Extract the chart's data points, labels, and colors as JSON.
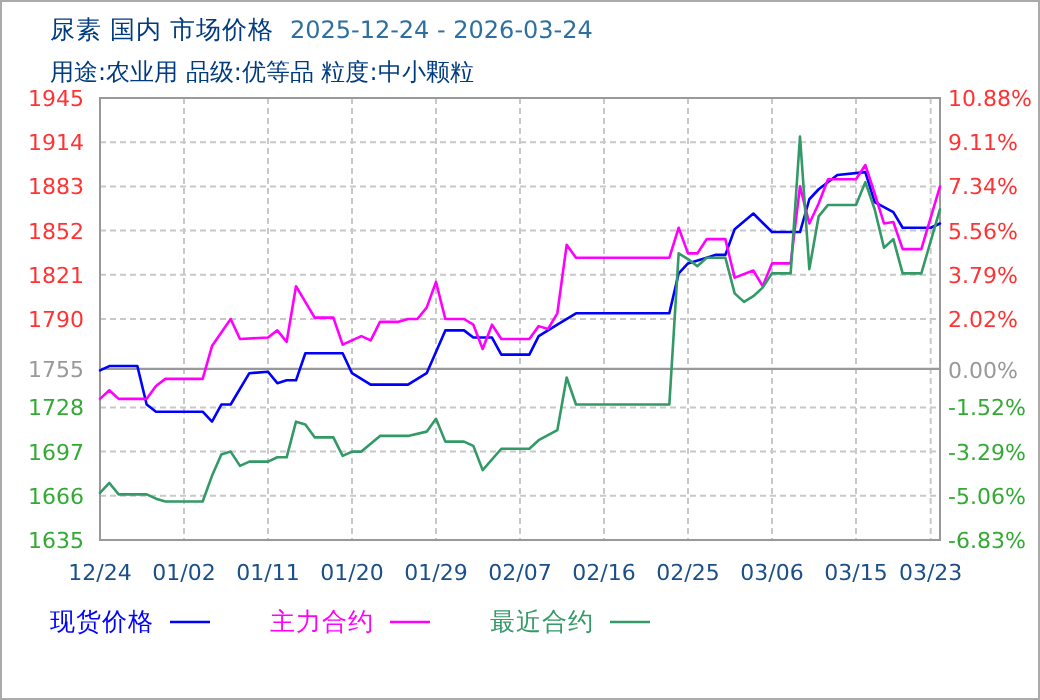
{
  "chart_data": {
    "type": "line",
    "title": "尿素 国内 市场价格",
    "subtitle": "用途:农业用 品级:优等品 粒度:中小颗粒",
    "annotations": [
      "2025-12-24 - 2026-03-24"
    ],
    "xlim": [
      "2025-12-24",
      "2026-03-24"
    ],
    "xticks": [
      {
        "value": "2025-12-24",
        "label": "12/24"
      },
      {
        "value": "2026-01-02",
        "label": "01/02"
      },
      {
        "value": "2026-01-11",
        "label": "01/11"
      },
      {
        "value": "2026-01-20",
        "label": "01/20"
      },
      {
        "value": "2026-01-29",
        "label": "01/29"
      },
      {
        "value": "2026-02-07",
        "label": "02/07"
      },
      {
        "value": "2026-02-16",
        "label": "02/16"
      },
      {
        "value": "2026-02-25",
        "label": "02/25"
      },
      {
        "value": "2026-03-06",
        "label": "03/06"
      },
      {
        "value": "2026-03-15",
        "label": "03/15"
      },
      {
        "value": "2026-03-23",
        "label": "03/23"
      }
    ],
    "ylim": [
      1635,
      1945
    ],
    "yticks": [
      1945,
      1914,
      1883,
      1852,
      1821,
      1790,
      1755,
      1728,
      1697,
      1666,
      1635
    ],
    "y2lim": [
      -6.83,
      10.88
    ],
    "y2ticks": [
      {
        "value": 10.88,
        "label": "10.88%"
      },
      {
        "value": 9.11,
        "label": "9.11%"
      },
      {
        "value": 7.34,
        "label": "7.34%"
      },
      {
        "value": 5.56,
        "label": "5.56%"
      },
      {
        "value": 3.79,
        "label": "3.79%"
      },
      {
        "value": 2.02,
        "label": "2.02%"
      },
      {
        "value": 0,
        "label": "0.00%"
      },
      {
        "value": -1.52,
        "label": "-1.52%"
      },
      {
        "value": -3.29,
        "label": "-3.29%"
      },
      {
        "value": -5.06,
        "label": "-5.06%"
      },
      {
        "value": -6.83,
        "label": "-6.83%"
      }
    ],
    "ref_lines": [
      {
        "axis": "y",
        "value": 1755,
        "color": "#999999",
        "line_style": "solid"
      }
    ],
    "grid": true,
    "legend": "bottom",
    "line_style": "solid",
    "series": [
      {
        "name": "现货价格",
        "color": "#0000ff",
        "x": [
          "2025-12-24",
          "2025-12-25",
          "2025-12-28",
          "2025-12-29",
          "2025-12-30",
          "2026-01-04",
          "2026-01-05",
          "2026-01-06",
          "2026-01-07",
          "2026-01-09",
          "2026-01-11",
          "2026-01-12",
          "2026-01-13",
          "2026-01-14",
          "2026-01-15",
          "2026-01-19",
          "2026-01-20",
          "2026-01-22",
          "2026-01-26",
          "2026-01-28",
          "2026-01-30",
          "2026-02-01",
          "2026-02-02",
          "2026-02-04",
          "2026-02-05",
          "2026-02-08",
          "2026-02-09",
          "2026-02-11",
          "2026-02-13",
          "2026-02-23",
          "2026-02-24",
          "2026-02-25",
          "2026-02-28",
          "2026-03-01",
          "2026-03-02",
          "2026-03-04",
          "2026-03-06",
          "2026-03-09",
          "2026-03-10",
          "2026-03-11",
          "2026-03-13",
          "2026-03-16",
          "2026-03-17",
          "2026-03-19",
          "2026-03-20",
          "2026-03-23",
          "2026-03-24"
        ],
        "values": [
          1754,
          1757,
          1757,
          1730,
          1725,
          1725,
          1718,
          1730,
          1730,
          1752,
          1753,
          1745,
          1747,
          1747,
          1766,
          1766,
          1752,
          1744,
          1744,
          1752,
          1782,
          1782,
          1777,
          1777,
          1765,
          1765,
          1778,
          1786,
          1794,
          1794,
          1822,
          1829,
          1835,
          1835,
          1853,
          1864,
          1851,
          1851,
          1874,
          1881,
          1891,
          1893,
          1872,
          1865,
          1854,
          1854,
          1857
        ]
      },
      {
        "name": "主力合约",
        "color": "#ff00ff",
        "x": [
          "2025-12-24",
          "2025-12-25",
          "2025-12-26",
          "2025-12-29",
          "2025-12-30",
          "2025-12-31",
          "2026-01-04",
          "2026-01-05",
          "2026-01-07",
          "2026-01-08",
          "2026-01-11",
          "2026-01-12",
          "2026-01-13",
          "2026-01-14",
          "2026-01-16",
          "2026-01-18",
          "2026-01-19",
          "2026-01-21",
          "2026-01-22",
          "2026-01-23",
          "2026-01-25",
          "2026-01-26",
          "2026-01-27",
          "2026-01-28",
          "2026-01-29",
          "2026-01-30",
          "2026-02-01",
          "2026-02-02",
          "2026-02-03",
          "2026-02-04",
          "2026-02-05",
          "2026-02-08",
          "2026-02-09",
          "2026-02-10",
          "2026-02-11",
          "2026-02-12",
          "2026-02-13",
          "2026-02-23",
          "2026-02-24",
          "2026-02-25",
          "2026-02-26",
          "2026-02-27",
          "2026-03-01",
          "2026-03-02",
          "2026-03-04",
          "2026-03-05",
          "2026-03-06",
          "2026-03-08",
          "2026-03-09",
          "2026-03-10",
          "2026-03-11",
          "2026-03-12",
          "2026-03-15",
          "2026-03-16",
          "2026-03-17",
          "2026-03-18",
          "2026-03-19",
          "2026-03-20",
          "2026-03-22",
          "2026-03-24"
        ],
        "values": [
          1734,
          1740,
          1734,
          1734,
          1743,
          1748,
          1748,
          1771,
          1790,
          1776,
          1777,
          1782,
          1774,
          1813,
          1791,
          1791,
          1772,
          1778,
          1775,
          1788,
          1788,
          1790,
          1790,
          1798,
          1816,
          1790,
          1790,
          1786,
          1769,
          1786,
          1776,
          1776,
          1785,
          1783,
          1794,
          1842,
          1833,
          1833,
          1854,
          1836,
          1836,
          1846,
          1846,
          1819,
          1824,
          1813,
          1829,
          1829,
          1883,
          1857,
          1871,
          1888,
          1888,
          1898,
          1878,
          1857,
          1858,
          1839,
          1839,
          1883
        ]
      },
      {
        "name": "最近合约",
        "color": "#339966",
        "x": [
          "2025-12-24",
          "2025-12-25",
          "2025-12-26",
          "2025-12-29",
          "2025-12-30",
          "2025-12-31",
          "2026-01-04",
          "2026-01-05",
          "2026-01-06",
          "2026-01-07",
          "2026-01-08",
          "2026-01-09",
          "2026-01-11",
          "2026-01-12",
          "2026-01-13",
          "2026-01-14",
          "2026-01-15",
          "2026-01-16",
          "2026-01-18",
          "2026-01-19",
          "2026-01-20",
          "2026-01-21",
          "2026-01-23",
          "2026-01-26",
          "2026-01-28",
          "2026-01-29",
          "2026-01-30",
          "2026-02-01",
          "2026-02-02",
          "2026-02-03",
          "2026-02-05",
          "2026-02-08",
          "2026-02-09",
          "2026-02-11",
          "2026-02-12",
          "2026-02-13",
          "2026-02-23",
          "2026-02-24",
          "2026-02-25",
          "2026-02-26",
          "2026-02-27",
          "2026-03-01",
          "2026-03-02",
          "2026-03-03",
          "2026-03-04",
          "2026-03-05",
          "2026-03-06",
          "2026-03-08",
          "2026-03-09",
          "2026-03-10",
          "2026-03-11",
          "2026-03-12",
          "2026-03-15",
          "2026-03-16",
          "2026-03-17",
          "2026-03-18",
          "2026-03-19",
          "2026-03-20",
          "2026-03-22",
          "2026-03-24"
        ],
        "values": [
          1668,
          1675,
          1667,
          1667,
          1664,
          1662,
          1662,
          1680,
          1695,
          1697,
          1687,
          1690,
          1690,
          1693,
          1693,
          1718,
          1716,
          1707,
          1707,
          1694,
          1697,
          1697,
          1708,
          1708,
          1711,
          1720,
          1704,
          1704,
          1701,
          1684,
          1699,
          1699,
          1705,
          1712,
          1749,
          1730,
          1730,
          1836,
          1832,
          1827,
          1833,
          1833,
          1808,
          1802,
          1806,
          1812,
          1822,
          1822,
          1918,
          1825,
          1862,
          1870,
          1870,
          1886,
          1867,
          1840,
          1846,
          1822,
          1822,
          1867
        ]
      }
    ]
  }
}
